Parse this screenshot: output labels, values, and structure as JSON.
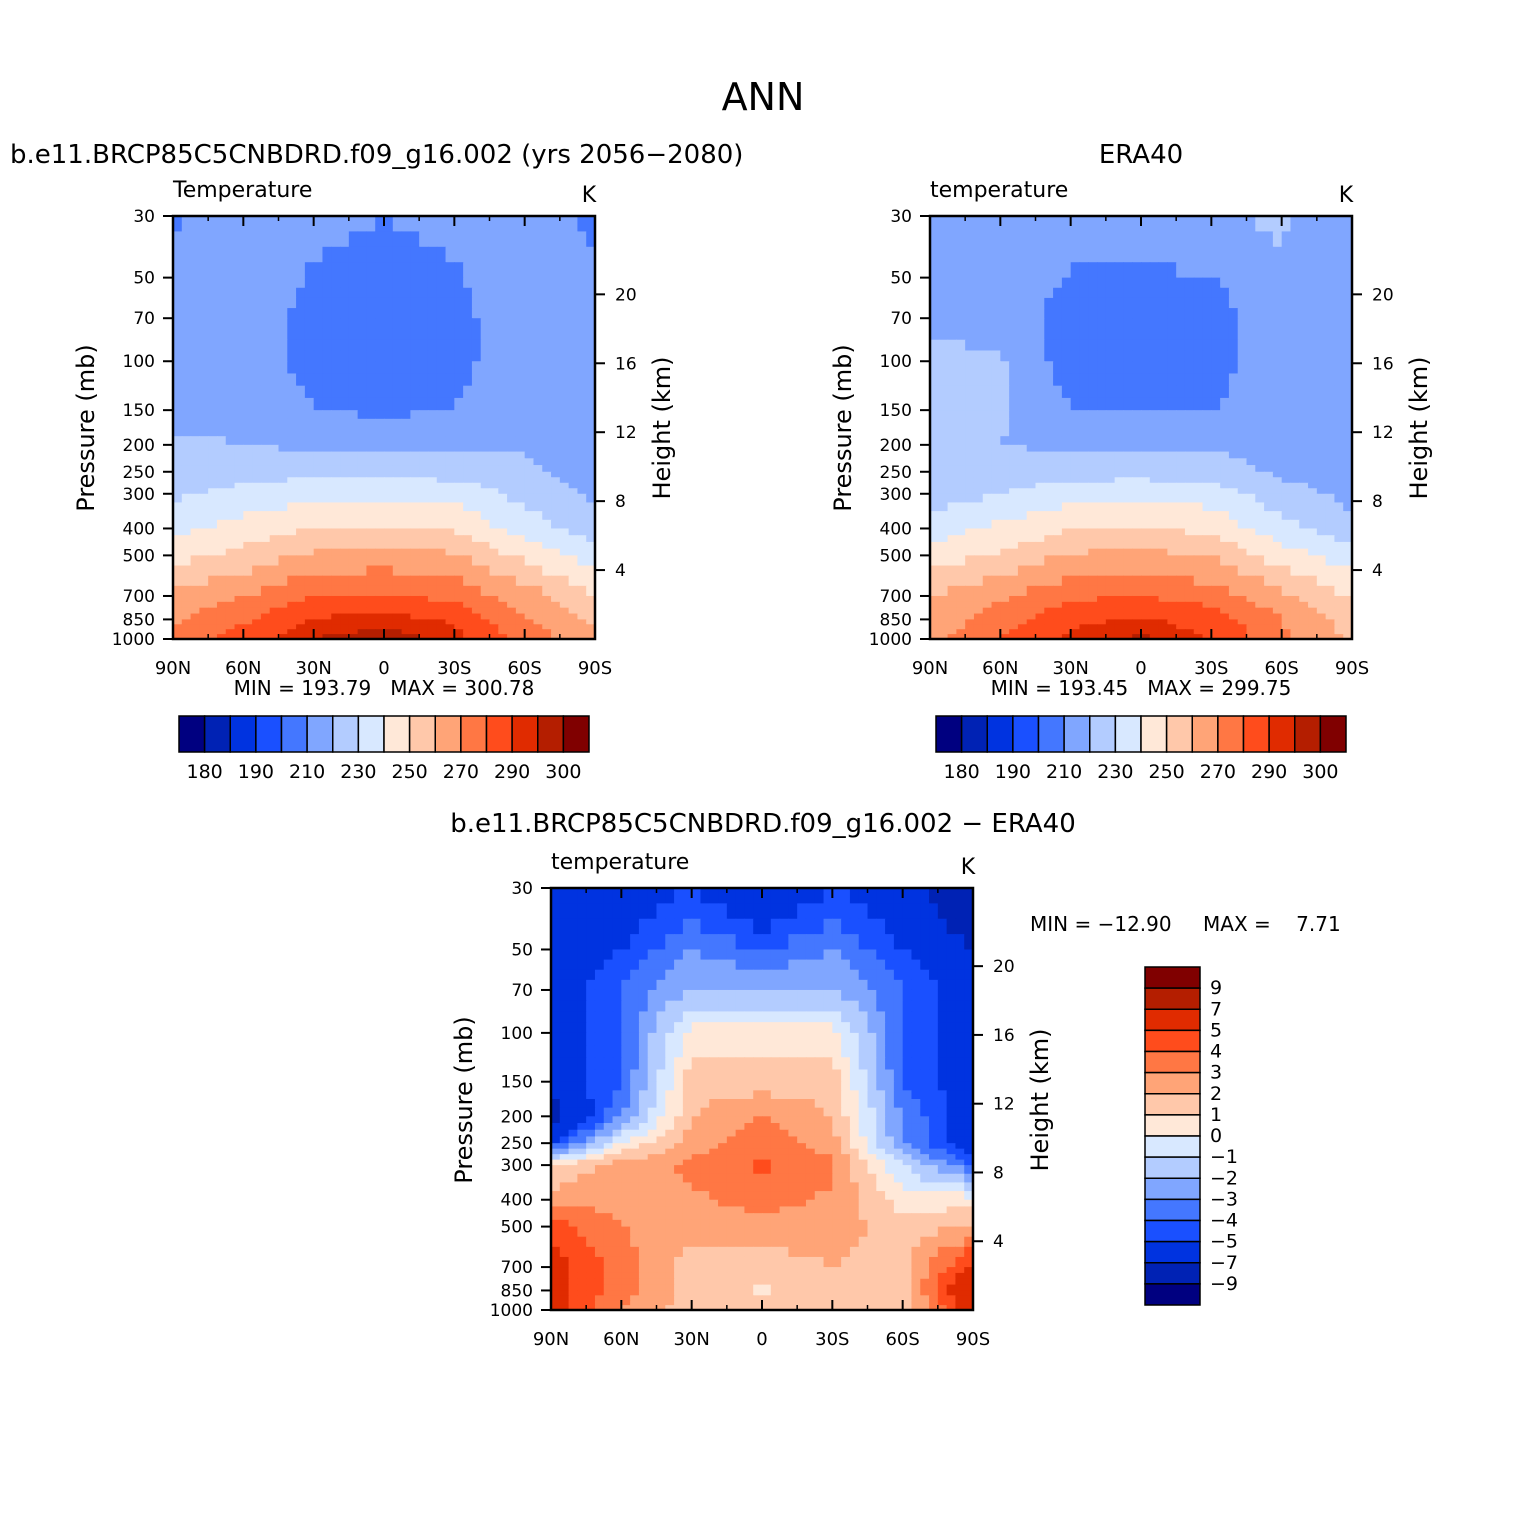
{
  "figure": {
    "title": "ANN"
  },
  "palettes": {
    "abs": [
      "#000080",
      "#0022b4",
      "#0033e0",
      "#1a50ff",
      "#4477ff",
      "#80a6ff",
      "#b3ccff",
      "#d8e8ff",
      "#ffe8d8",
      "#ffc8aa",
      "#ffa477",
      "#ff7744",
      "#ff4c1c",
      "#e02b00",
      "#b41e00",
      "#800000"
    ],
    "diff": [
      "#000080",
      "#0022b4",
      "#0033e0",
      "#1a50ff",
      "#4477ff",
      "#80a6ff",
      "#b3ccff",
      "#d8e8ff",
      "#ffe8d8",
      "#ffc8aa",
      "#ffa477",
      "#ff7744",
      "#ff4c1c",
      "#e02b00",
      "#b41e00",
      "#800000"
    ]
  },
  "chart_data": [
    {
      "type": "heatmap",
      "title": "b.e11.BRCP85C5CNBDRD.f09_g16.002 (yrs 2056-2080)",
      "subtitle": "Temperature",
      "units": "K",
      "ylabel": "Pressure (mb)",
      "ylabel_right": "Height (km)",
      "x_ticks": [
        "90N",
        "60N",
        "30N",
        "0",
        "30S",
        "60S",
        "90S"
      ],
      "x_tick_values": [
        90,
        60,
        30,
        0,
        -30,
        -60,
        -90
      ],
      "y_ticks": [
        30,
        50,
        70,
        100,
        150,
        200,
        250,
        300,
        400,
        500,
        700,
        850,
        1000
      ],
      "y_right_ticks": [
        20,
        16,
        12,
        8,
        4
      ],
      "ylim": [
        1000,
        30
      ],
      "stats": "MIN = 193.79   MAX = 300.78",
      "colorbar": {
        "levels": [
          180,
          185,
          190,
          200,
          210,
          220,
          230,
          240,
          250,
          260,
          270,
          280,
          290,
          295,
          300
        ],
        "labels": [
          "180",
          "190",
          "210",
          "230",
          "250",
          "270",
          "290",
          "300"
        ]
      },
      "x": [
        90,
        60,
        30,
        0,
        -30,
        -60,
        -90
      ],
      "y": [
        30,
        50,
        70,
        100,
        150,
        200,
        250,
        300,
        400,
        500,
        700,
        850,
        1000
      ],
      "z": [
        [
          208,
          218,
          212,
          210,
          212,
          220,
          207
        ],
        [
          218,
          218,
          209,
          208,
          209,
          218,
          211
        ],
        [
          218,
          217,
          206,
          201,
          206,
          218,
          217
        ],
        [
          218,
          217,
          206,
          201,
          206,
          218,
          217
        ],
        [
          218,
          218,
          210,
          208,
          210,
          218,
          217
        ],
        [
          221,
          220,
          218,
          218,
          218,
          219,
          212
        ],
        [
          223,
          226,
          227,
          227,
          226,
          222,
          214
        ],
        [
          228,
          233,
          237,
          237,
          236,
          227,
          218
        ],
        [
          237,
          244,
          250,
          251,
          249,
          235,
          224
        ],
        [
          246,
          253,
          262,
          264,
          261,
          247,
          235
        ],
        [
          263,
          270,
          280,
          281,
          277,
          265,
          251
        ],
        [
          268,
          278,
          291,
          293,
          289,
          271,
          258
        ],
        [
          272,
          286,
          295,
          298,
          293,
          277,
          262
        ]
      ]
    },
    {
      "type": "heatmap",
      "title": "ERA40",
      "subtitle": "temperature",
      "units": "K",
      "ylabel": "Pressure (mb)",
      "ylabel_right": "Height (km)",
      "x_ticks": [
        "90N",
        "60N",
        "30N",
        "0",
        "30S",
        "60S",
        "90S"
      ],
      "x_tick_values": [
        90,
        60,
        30,
        0,
        -30,
        -60,
        -90
      ],
      "y_ticks": [
        30,
        50,
        70,
        100,
        150,
        200,
        250,
        300,
        400,
        500,
        700,
        850,
        1000
      ],
      "y_right_ticks": [
        20,
        16,
        12,
        8,
        4
      ],
      "ylim": [
        1000,
        30
      ],
      "stats": "MIN = 193.45   MAX = 299.75",
      "colorbar": {
        "levels": [
          180,
          185,
          190,
          200,
          210,
          220,
          230,
          240,
          250,
          260,
          270,
          280,
          290,
          295,
          300
        ],
        "labels": [
          "180",
          "190",
          "210",
          "230",
          "250",
          "270",
          "290",
          "300"
        ]
      },
      "x": [
        90,
        60,
        30,
        0,
        -30,
        -60,
        -90
      ],
      "y": [
        30,
        50,
        70,
        100,
        150,
        200,
        250,
        300,
        400,
        500,
        700,
        850,
        1000
      ],
      "z": [
        [
          218,
          218,
          216,
          215,
          218,
          222,
          211
        ],
        [
          218,
          218,
          209,
          208,
          210,
          218,
          213
        ],
        [
          218,
          217,
          205,
          200,
          205,
          218,
          216
        ],
        [
          222,
          221,
          205,
          200,
          205,
          218,
          216
        ],
        [
          224,
          221,
          210,
          209,
          210,
          218,
          215
        ],
        [
          223,
          220,
          218,
          218,
          218,
          217,
          214
        ],
        [
          221,
          224,
          226,
          226,
          225,
          218,
          215
        ],
        [
          225,
          230,
          236,
          237,
          235,
          224,
          217
        ],
        [
          235,
          242,
          249,
          251,
          247,
          233,
          223
        ],
        [
          244,
          251,
          261,
          263,
          259,
          245,
          234
        ],
        [
          260,
          268,
          278,
          280,
          275,
          263,
          249
        ],
        [
          263,
          275,
          288,
          291,
          286,
          270,
          255
        ],
        [
          266,
          281,
          292,
          296,
          290,
          272,
          258
        ]
      ]
    },
    {
      "type": "heatmap",
      "title": "b.e11.BRCP85C5CNBDRD.f09_g16.002 - ERA40",
      "subtitle": "temperature",
      "units": "K",
      "ylabel": "Pressure (mb)",
      "ylabel_right": "Height (km)",
      "x_ticks": [
        "90N",
        "60N",
        "30N",
        "0",
        "30S",
        "60S",
        "90S"
      ],
      "x_tick_values": [
        90,
        60,
        30,
        0,
        -30,
        -60,
        -90
      ],
      "y_ticks": [
        30,
        50,
        70,
        100,
        150,
        200,
        250,
        300,
        400,
        500,
        700,
        850,
        1000
      ],
      "y_right_ticks": [
        20,
        16,
        12,
        8,
        4
      ],
      "ylim": [
        1000,
        30
      ],
      "stats_min": "MIN = -12.90",
      "stats_max": "MAX =    7.71",
      "colorbar": {
        "levels": [
          -9,
          -7,
          -5,
          -4,
          -3,
          -2,
          -1,
          0,
          1,
          2,
          3,
          4,
          5,
          7,
          9
        ],
        "labels": [
          "9",
          "7",
          "5",
          "4",
          "3",
          "2",
          "1",
          "0",
          "-1",
          "-2",
          "-3",
          "-4",
          "-5",
          "-7",
          "-9"
        ]
      },
      "x": [
        90,
        60,
        30,
        0,
        -30,
        -60,
        -90
      ],
      "y": [
        30,
        50,
        70,
        100,
        150,
        200,
        250,
        300,
        400,
        500,
        700,
        850,
        1000
      ],
      "z": [
        [
          -7,
          -6,
          -5,
          -7,
          -5,
          -6,
          -9
        ],
        [
          -6,
          -5,
          -3,
          -4,
          -3,
          -5,
          -7
        ],
        [
          -6,
          -4,
          -2,
          -2,
          -2,
          -4,
          -6
        ],
        [
          -6,
          -4,
          0.5,
          0.5,
          0.5,
          -4,
          -6
        ],
        [
          -6,
          -4,
          1.5,
          1.5,
          1.5,
          -4,
          -6
        ],
        [
          -8,
          -3,
          2,
          3,
          2,
          -3,
          -6
        ],
        [
          -5,
          0,
          2.5,
          3.5,
          2.5,
          -3,
          -6
        ],
        [
          1,
          2.5,
          3.2,
          4.2,
          3.2,
          -1,
          -4
        ],
        [
          2.5,
          2.8,
          2.8,
          3.5,
          2.8,
          0.5,
          0.5
        ],
        [
          4.5,
          3,
          2.5,
          2.5,
          2.5,
          1.5,
          2
        ],
        [
          5.5,
          3.5,
          1.5,
          1.5,
          2,
          1.5,
          5.5
        ],
        [
          5.5,
          3.5,
          1.5,
          0.8,
          1.5,
          1.5,
          7
        ],
        [
          5.5,
          3,
          1.5,
          1.5,
          1.5,
          1,
          6
        ]
      ]
    }
  ]
}
